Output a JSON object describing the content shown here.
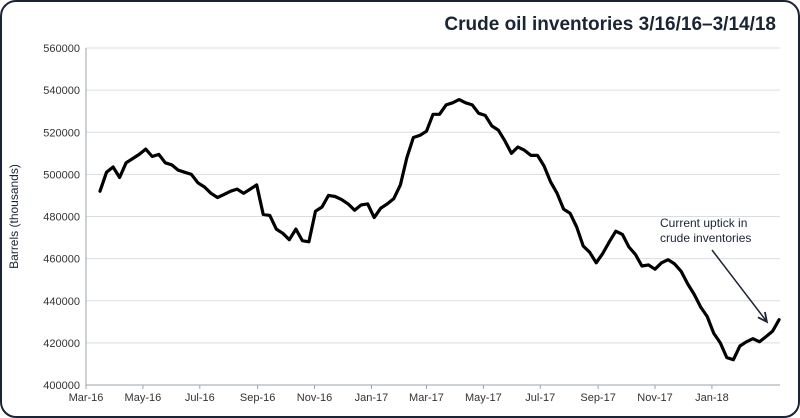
{
  "chart_data": {
    "type": "line",
    "title": "Crude oil inventories 3/16/16–3/14/18",
    "xlabel": "",
    "ylabel": "Barrels (thousands)",
    "ylim": [
      400000,
      560000
    ],
    "yticks": [
      400000,
      420000,
      440000,
      460000,
      480000,
      500000,
      520000,
      540000,
      560000
    ],
    "ytick_labels": [
      "400000",
      "420000",
      "440000",
      "460000",
      "480000",
      "500000",
      "520000",
      "540000",
      "560000"
    ],
    "xlim": [
      "2016-03-01",
      "2018-03-15"
    ],
    "xticks": [
      "2016-03-01",
      "2016-05-01",
      "2016-07-01",
      "2016-09-01",
      "2016-11-01",
      "2017-01-01",
      "2017-03-01",
      "2017-05-01",
      "2017-07-01",
      "2017-09-01",
      "2017-11-01",
      "2018-01-01"
    ],
    "xtick_labels": [
      "Mar-16",
      "May-16",
      "Jul-16",
      "Sep-16",
      "Nov-16",
      "Jan-17",
      "Mar-17",
      "May-17",
      "Jul-17",
      "Sep-17",
      "Nov-17",
      "Jan-18"
    ],
    "grid": "horizontal",
    "legend": "none",
    "line_color": "#000000",
    "series": [
      {
        "x": [
          "2016-03-16",
          "2016-03-23",
          "2016-03-30",
          "2016-04-06",
          "2016-04-13",
          "2016-04-20",
          "2016-04-27",
          "2016-05-04",
          "2016-05-11",
          "2016-05-18",
          "2016-05-25",
          "2016-06-01",
          "2016-06-08",
          "2016-06-15",
          "2016-06-22",
          "2016-06-29",
          "2016-07-06",
          "2016-07-13",
          "2016-07-20",
          "2016-07-27",
          "2016-08-03",
          "2016-08-10",
          "2016-08-17",
          "2016-08-24",
          "2016-08-31",
          "2016-09-07",
          "2016-09-14",
          "2016-09-21",
          "2016-09-28",
          "2016-10-05",
          "2016-10-12",
          "2016-10-19",
          "2016-10-26",
          "2016-11-02",
          "2016-11-09",
          "2016-11-16",
          "2016-11-23",
          "2016-11-30",
          "2016-12-07",
          "2016-12-14",
          "2016-12-21",
          "2016-12-28",
          "2017-01-04",
          "2017-01-11",
          "2017-01-18",
          "2017-01-25",
          "2017-02-01",
          "2017-02-08",
          "2017-02-15",
          "2017-02-22",
          "2017-03-01",
          "2017-03-08",
          "2017-03-15",
          "2017-03-22",
          "2017-03-29",
          "2017-04-05",
          "2017-04-12",
          "2017-04-19",
          "2017-04-26",
          "2017-05-03",
          "2017-05-10",
          "2017-05-17",
          "2017-05-24",
          "2017-05-31",
          "2017-06-07",
          "2017-06-14",
          "2017-06-21",
          "2017-06-28",
          "2017-07-05",
          "2017-07-12",
          "2017-07-19",
          "2017-07-26",
          "2017-08-02",
          "2017-08-09",
          "2017-08-16",
          "2017-08-23",
          "2017-08-30",
          "2017-09-06",
          "2017-09-13",
          "2017-09-20",
          "2017-09-27",
          "2017-10-04",
          "2017-10-11",
          "2017-10-18",
          "2017-10-25",
          "2017-11-01",
          "2017-11-08",
          "2017-11-15",
          "2017-11-22",
          "2017-11-29",
          "2017-12-06",
          "2017-12-13",
          "2017-12-20",
          "2017-12-27",
          "2018-01-03",
          "2018-01-10",
          "2018-01-17",
          "2018-01-24",
          "2018-01-31",
          "2018-02-07",
          "2018-02-14",
          "2018-02-21",
          "2018-02-28",
          "2018-03-07",
          "2018-03-14"
        ],
        "values": [
          492000,
          501000,
          503500,
          498500,
          505500,
          507500,
          509500,
          512000,
          508500,
          509500,
          505500,
          504500,
          502000,
          501000,
          500000,
          496000,
          494000,
          491000,
          489000,
          490500,
          492000,
          493000,
          491000,
          493000,
          495000,
          481000,
          480500,
          474000,
          472000,
          469000,
          474000,
          468500,
          468000,
          482500,
          484500,
          490000,
          489500,
          488000,
          486000,
          483000,
          485500,
          486000,
          479500,
          484000,
          486000,
          488500,
          495000,
          508000,
          517500,
          518500,
          520500,
          528500,
          528500,
          533000,
          534000,
          535500,
          534000,
          533000,
          529000,
          528000,
          523000,
          521000,
          516000,
          510000,
          513000,
          511500,
          509000,
          509000,
          504000,
          496500,
          491000,
          483500,
          481500,
          475000,
          466000,
          463000,
          458000,
          462500,
          468000,
          473000,
          471500,
          465500,
          462000,
          456500,
          457000,
          455000,
          458000,
          459500,
          457500,
          454000,
          448000,
          443000,
          437000,
          432500,
          424500,
          420000,
          413000,
          412000,
          418500,
          420500,
          422000,
          420500,
          423000,
          425500,
          431000
        ]
      }
    ],
    "annotation": {
      "lines": [
        "Current uptick in",
        "crude inventories"
      ],
      "arrow_target": [
        "2018-03-01",
        430000
      ]
    }
  }
}
